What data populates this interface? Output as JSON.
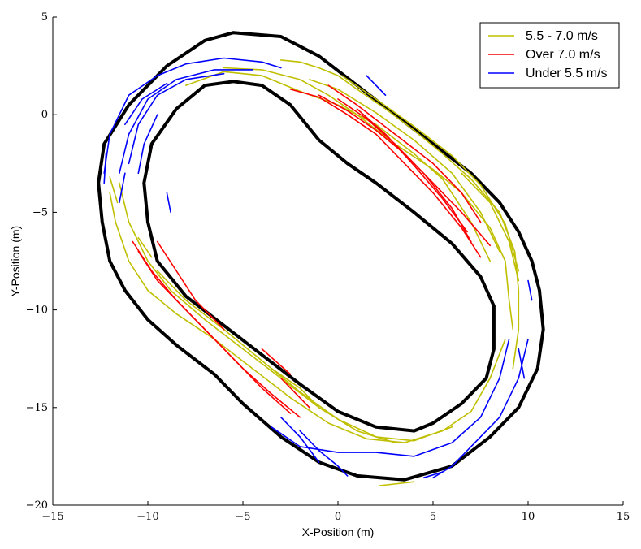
{
  "chart_data": {
    "type": "line",
    "xlabel": "X-Position (m)",
    "ylabel": "Y-Position (m)",
    "xlim": [
      -15,
      15
    ],
    "ylim": [
      -20,
      5
    ],
    "xticks": [
      -15,
      -10,
      -5,
      0,
      5,
      10,
      15
    ],
    "yticks": [
      5,
      0,
      -5,
      -10,
      -15,
      -20
    ],
    "xtick_labels": [
      "−15",
      "−10",
      "−5",
      "0",
      "5",
      "10",
      "15"
    ],
    "ytick_labels": [
      "5",
      "0",
      "−5",
      "−10",
      "−15",
      "−20"
    ],
    "grid": false,
    "legend_position": "top-right",
    "legend": [
      {
        "label": "5.5 - 7.0 m/s",
        "color": "#bfbf00"
      },
      {
        "label": "Over 7.0 m/s",
        "color": "#ff0000"
      },
      {
        "label": "Under 5.5 m/s",
        "color": "#0000ff"
      }
    ],
    "track_color": "#000000",
    "track_boundaries": [
      {
        "name": "outer",
        "points": [
          [
            -5.5,
            4.2
          ],
          [
            -3,
            4.0
          ],
          [
            -1,
            3.0
          ],
          [
            1,
            1.5
          ],
          [
            3,
            0
          ],
          [
            5,
            -1.5
          ],
          [
            7,
            -3
          ],
          [
            8.5,
            -4.5
          ],
          [
            9.5,
            -6
          ],
          [
            10.2,
            -7.5
          ],
          [
            10.6,
            -9
          ],
          [
            10.8,
            -11
          ],
          [
            10.5,
            -13
          ],
          [
            9.5,
            -15
          ],
          [
            8,
            -16.5
          ],
          [
            6,
            -18
          ],
          [
            3.5,
            -18.7
          ],
          [
            1,
            -18.5
          ],
          [
            -1,
            -17.8
          ],
          [
            -3,
            -16.5
          ],
          [
            -5,
            -14.8
          ],
          [
            -6.5,
            -13.3
          ],
          [
            -8.5,
            -11.8
          ],
          [
            -10,
            -10.5
          ],
          [
            -11.2,
            -9
          ],
          [
            -12,
            -7.5
          ],
          [
            -12.4,
            -5.5
          ],
          [
            -12.6,
            -3.5
          ],
          [
            -12.3,
            -1.5
          ],
          [
            -11,
            0.5
          ],
          [
            -9,
            2.5
          ],
          [
            -7,
            3.8
          ],
          [
            -5.5,
            4.2
          ]
        ]
      },
      {
        "name": "inner",
        "points": [
          [
            -5.5,
            1.7
          ],
          [
            -4,
            1.5
          ],
          [
            -2.5,
            0.5
          ],
          [
            -1,
            -1.3
          ],
          [
            0.5,
            -2.5
          ],
          [
            2,
            -3.5
          ],
          [
            4,
            -5
          ],
          [
            6,
            -6.6
          ],
          [
            7.5,
            -8.3
          ],
          [
            8.2,
            -9.8
          ],
          [
            8.2,
            -12
          ],
          [
            7.8,
            -13.5
          ],
          [
            6.5,
            -14.8
          ],
          [
            5,
            -15.8
          ],
          [
            4,
            -16.2
          ],
          [
            2,
            -16
          ],
          [
            0,
            -15.2
          ],
          [
            -2,
            -13.8
          ],
          [
            -4,
            -12.3
          ],
          [
            -6,
            -10.8
          ],
          [
            -8,
            -9.3
          ],
          [
            -9.5,
            -7.5
          ],
          [
            -10,
            -5.5
          ],
          [
            -10.2,
            -3.5
          ],
          [
            -9.8,
            -1.5
          ],
          [
            -8.5,
            0.3
          ],
          [
            -7,
            1.5
          ],
          [
            -5.5,
            1.7
          ]
        ]
      }
    ],
    "series": [
      {
        "name": "5.5 - 7.0 m/s",
        "color": "#bfbf00",
        "segments": [
          [
            [
              -3,
              2.8
            ],
            [
              -2,
              2.7
            ],
            [
              -1,
              2.4
            ],
            [
              0,
              2.0
            ],
            [
              1,
              1.3
            ],
            [
              2.5,
              0.3
            ],
            [
              4,
              -0.8
            ],
            [
              5.5,
              -2
            ],
            [
              7,
              -3.3
            ],
            [
              8.5,
              -5
            ],
            [
              9.3,
              -7
            ],
            [
              9.5,
              -9
            ],
            [
              9.5,
              -11
            ],
            [
              9.2,
              -13
            ]
          ],
          [
            [
              -6,
              2.4
            ],
            [
              -4,
              2.3
            ],
            [
              -2,
              1.8
            ],
            [
              -0.5,
              1.0
            ],
            [
              1,
              0
            ],
            [
              3,
              -1.5
            ],
            [
              5,
              -2.8
            ],
            [
              6.5,
              -4
            ],
            [
              8,
              -5.8
            ],
            [
              8.8,
              -7.5
            ],
            [
              9,
              -9.5
            ],
            [
              9.2,
              -11
            ]
          ],
          [
            [
              -1.5,
              1.8
            ],
            [
              0,
              1.3
            ],
            [
              2,
              0.1
            ],
            [
              4,
              -1.3
            ],
            [
              6,
              -3
            ],
            [
              7.5,
              -5
            ],
            [
              8.5,
              -7
            ]
          ],
          [
            [
              -8,
              1.5
            ],
            [
              -6,
              2.2
            ],
            [
              -4,
              2.0
            ],
            [
              -2,
              1.2
            ],
            [
              0,
              0.5
            ],
            [
              2,
              -0.5
            ],
            [
              4,
              -2
            ],
            [
              5.5,
              -3.3
            ],
            [
              7,
              -5.5
            ],
            [
              8,
              -7.5
            ]
          ],
          [
            [
              0.2,
              2.0
            ],
            [
              2,
              0.8
            ],
            [
              4,
              -0.6
            ],
            [
              6,
              -2.1
            ],
            [
              7.5,
              -3.6
            ],
            [
              8.8,
              -5.6
            ],
            [
              9.5,
              -8
            ]
          ],
          [
            [
              -12,
              -4
            ],
            [
              -11.7,
              -5.5
            ],
            [
              -11,
              -7.5
            ],
            [
              -10,
              -9
            ],
            [
              -8.5,
              -10.2
            ],
            [
              -6.5,
              -11.5
            ],
            [
              -4.5,
              -13
            ],
            [
              -2.5,
              -14.5
            ],
            [
              -0.5,
              -15.8
            ],
            [
              1.5,
              -16.6
            ],
            [
              3.5,
              -16.8
            ],
            [
              5.5,
              -16.2
            ],
            [
              7,
              -15.2
            ],
            [
              8,
              -13.5
            ],
            [
              8.8,
              -11.5
            ]
          ],
          [
            [
              -11.5,
              -3.5
            ],
            [
              -11,
              -5.5
            ],
            [
              -10,
              -7.5
            ],
            [
              -8.8,
              -9
            ],
            [
              -7,
              -10.5
            ],
            [
              -5,
              -12
            ],
            [
              -3,
              -13.5
            ],
            [
              -1,
              -15
            ],
            [
              1,
              -16.2
            ],
            [
              3,
              -16.8
            ]
          ],
          [
            [
              -9.5,
              -8
            ],
            [
              -8,
              -9.5
            ],
            [
              -6,
              -11
            ],
            [
              -4,
              -12.6
            ],
            [
              -2,
              -14.2
            ],
            [
              0,
              -15.6
            ],
            [
              2,
              -16.5
            ],
            [
              4,
              -16.7
            ],
            [
              6,
              -16
            ]
          ],
          [
            [
              -3.5,
              -13
            ],
            [
              -2,
              -14
            ],
            [
              -1,
              -15
            ]
          ],
          [
            [
              -12,
              -3.2
            ],
            [
              -11.6,
              -4.5
            ]
          ],
          [
            [
              2.2,
              -19.0
            ],
            [
              4,
              -18.8
            ]
          ],
          [
            [
              -10.5,
              -6.3
            ],
            [
              -9.8,
              -7.3
            ]
          ],
          [
            [
              6.5,
              -3
            ],
            [
              8,
              -4.5
            ],
            [
              9,
              -6.5
            ],
            [
              9.5,
              -8.5
            ]
          ]
        ]
      },
      {
        "name": "Over 7.0 m/s",
        "color": "#ff0000",
        "segments": [
          [
            [
              -2.5,
              1.3
            ],
            [
              -1,
              0.9
            ],
            [
              0.5,
              0
            ],
            [
              2,
              -1
            ],
            [
              3.5,
              -2.5
            ],
            [
              5,
              -4
            ],
            [
              6.5,
              -5.8
            ],
            [
              7.5,
              -7.3
            ]
          ],
          [
            [
              -1,
              1.0
            ],
            [
              0.5,
              0.2
            ],
            [
              2,
              -0.8
            ],
            [
              3.5,
              -2
            ],
            [
              5,
              -3.5
            ],
            [
              6.5,
              -5
            ],
            [
              8,
              -6.7
            ]
          ],
          [
            [
              -0.5,
              1.5
            ],
            [
              1,
              0.5
            ],
            [
              3,
              -1
            ],
            [
              5,
              -2.5
            ],
            [
              6.5,
              -4
            ],
            [
              7.5,
              -5.5
            ]
          ],
          [
            [
              0,
              0.8
            ],
            [
              1.5,
              -0.2
            ],
            [
              3,
              -1.5
            ],
            [
              4.5,
              -3
            ],
            [
              6,
              -4.8
            ],
            [
              7,
              -6.5
            ]
          ],
          [
            [
              1,
              0.3
            ],
            [
              2.5,
              -1
            ],
            [
              4,
              -2.6
            ],
            [
              5.5,
              -4.3
            ],
            [
              6.8,
              -6
            ]
          ],
          [
            [
              -10.8,
              -6.5
            ],
            [
              -9.8,
              -8
            ],
            [
              -8.5,
              -9.5
            ],
            [
              -7,
              -11
            ],
            [
              -5.5,
              -12.5
            ],
            [
              -4,
              -14
            ],
            [
              -2.5,
              -15.3
            ]
          ],
          [
            [
              -10.5,
              -7
            ],
            [
              -9.5,
              -8.5
            ],
            [
              -8,
              -10
            ],
            [
              -6.5,
              -11.5
            ],
            [
              -5,
              -13
            ],
            [
              -3.5,
              -14.3
            ],
            [
              -2,
              -15.5
            ]
          ],
          [
            [
              -9.5,
              -6.5
            ],
            [
              -8.5,
              -8
            ],
            [
              -7.5,
              -9.5
            ],
            [
              -6,
              -11
            ]
          ],
          [
            [
              -4,
              -12
            ],
            [
              -2.5,
              -13.3
            ]
          ],
          [
            [
              -3,
              -13.5
            ],
            [
              -1.5,
              -15
            ]
          ]
        ]
      },
      {
        "name": "Under 5.5 m/s",
        "color": "#0000ff",
        "segments": [
          [
            [
              -12.3,
              -3
            ],
            [
              -12,
              -1
            ],
            [
              -11,
              1
            ],
            [
              -9.5,
              2
            ],
            [
              -8,
              2.6
            ],
            [
              -6,
              2.9
            ],
            [
              -4,
              2.7
            ],
            [
              -3,
              2.4
            ]
          ],
          [
            [
              -11.5,
              -3
            ],
            [
              -11,
              -1
            ],
            [
              -10,
              0.8
            ],
            [
              -8.5,
              1.8
            ],
            [
              -6.5,
              2.3
            ],
            [
              -4.5,
              2.3
            ]
          ],
          [
            [
              -11,
              -2.5
            ],
            [
              -10.5,
              -0.5
            ],
            [
              -9.5,
              1
            ],
            [
              -8,
              1.8
            ],
            [
              -6,
              2.1
            ]
          ],
          [
            [
              -11.2,
              -0.5
            ],
            [
              -10.3,
              0.8
            ],
            [
              -9,
              1.6
            ]
          ],
          [
            [
              -10.5,
              -3
            ],
            [
              -10.2,
              -1.5
            ],
            [
              -9.5,
              0
            ]
          ],
          [
            [
              -11.5,
              -4.5
            ],
            [
              -11.2,
              -3
            ]
          ],
          [
            [
              -3.5,
              -16
            ],
            [
              -2,
              -17
            ],
            [
              0,
              -17.3
            ],
            [
              2,
              -17.3
            ],
            [
              4,
              -17.5
            ],
            [
              6,
              -16.8
            ],
            [
              7.5,
              -15.5
            ],
            [
              8.5,
              -13.5
            ],
            [
              9,
              -11.5
            ]
          ],
          [
            [
              -2,
              -16.2
            ],
            [
              -1,
              -17.2
            ],
            [
              0,
              -18
            ],
            [
              0.5,
              -18.5
            ]
          ],
          [
            [
              -3,
              -15.5
            ],
            [
              -2,
              -16.5
            ],
            [
              -1,
              -17.8
            ]
          ],
          [
            [
              5,
              -18.6
            ],
            [
              6,
              -18
            ],
            [
              7,
              -17
            ],
            [
              8.5,
              -15.5
            ],
            [
              9.5,
              -13.5
            ],
            [
              10,
              -11.5
            ]
          ],
          [
            [
              4.5,
              -18.6
            ],
            [
              5.5,
              -18.3
            ]
          ],
          [
            [
              9.5,
              -12
            ],
            [
              9.8,
              -13.5
            ]
          ],
          [
            [
              -9,
              -4
            ],
            [
              -8.8,
              -5
            ]
          ],
          [
            [
              1.5,
              2.0
            ],
            [
              2.5,
              1.0
            ]
          ],
          [
            [
              10,
              -8.5
            ],
            [
              10.2,
              -9.5
            ]
          ],
          [
            [
              -12.2,
              -2
            ],
            [
              -12.3,
              -3.5
            ]
          ]
        ]
      }
    ]
  }
}
